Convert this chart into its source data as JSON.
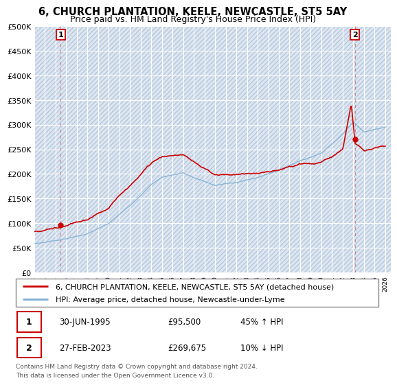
{
  "title": "6, CHURCH PLANTATION, KEELE, NEWCASTLE, ST5 5AY",
  "subtitle": "Price paid vs. HM Land Registry's House Price Index (HPI)",
  "title_fontsize": 10.5,
  "subtitle_fontsize": 9,
  "ylabel_ticks": [
    "£0",
    "£50K",
    "£100K",
    "£150K",
    "£200K",
    "£250K",
    "£300K",
    "£350K",
    "£400K",
    "£450K",
    "£500K"
  ],
  "ytick_values": [
    0,
    50000,
    100000,
    150000,
    200000,
    250000,
    300000,
    350000,
    400000,
    450000,
    500000
  ],
  "xlim_start": 1993.0,
  "xlim_end": 2026.5,
  "ylim_min": 0,
  "ylim_max": 500000,
  "background_color": "#ffffff",
  "plot_bg_color": "#dce6f1",
  "grid_color": "#ffffff",
  "hatch_color": "#b8c8dc",
  "sale1_date": 1995.5,
  "sale1_price": 95500,
  "sale1_label": "1",
  "sale2_date": 2023.15,
  "sale2_price": 269675,
  "sale2_label": "2",
  "red_line_color": "#cc0000",
  "blue_line_color": "#7bafd4",
  "legend_label1": "6, CHURCH PLANTATION, KEELE, NEWCASTLE, ST5 5AY (detached house)",
  "legend_label2": "HPI: Average price, detached house, Newcastle-under-Lyme",
  "table_row1": [
    "1",
    "30-JUN-1995",
    "£95,500",
    "45% ↑ HPI"
  ],
  "table_row2": [
    "2",
    "27-FEB-2023",
    "£269,675",
    "10% ↓ HPI"
  ],
  "footnote": "Contains HM Land Registry data © Crown copyright and database right 2024.\nThis data is licensed under the Open Government Licence v3.0.",
  "xtick_years": [
    1993,
    1994,
    1995,
    1996,
    1997,
    1998,
    1999,
    2000,
    2001,
    2002,
    2003,
    2004,
    2005,
    2006,
    2007,
    2008,
    2009,
    2010,
    2011,
    2012,
    2013,
    2014,
    2015,
    2016,
    2017,
    2018,
    2019,
    2020,
    2021,
    2022,
    2023,
    2024,
    2025,
    2026
  ]
}
